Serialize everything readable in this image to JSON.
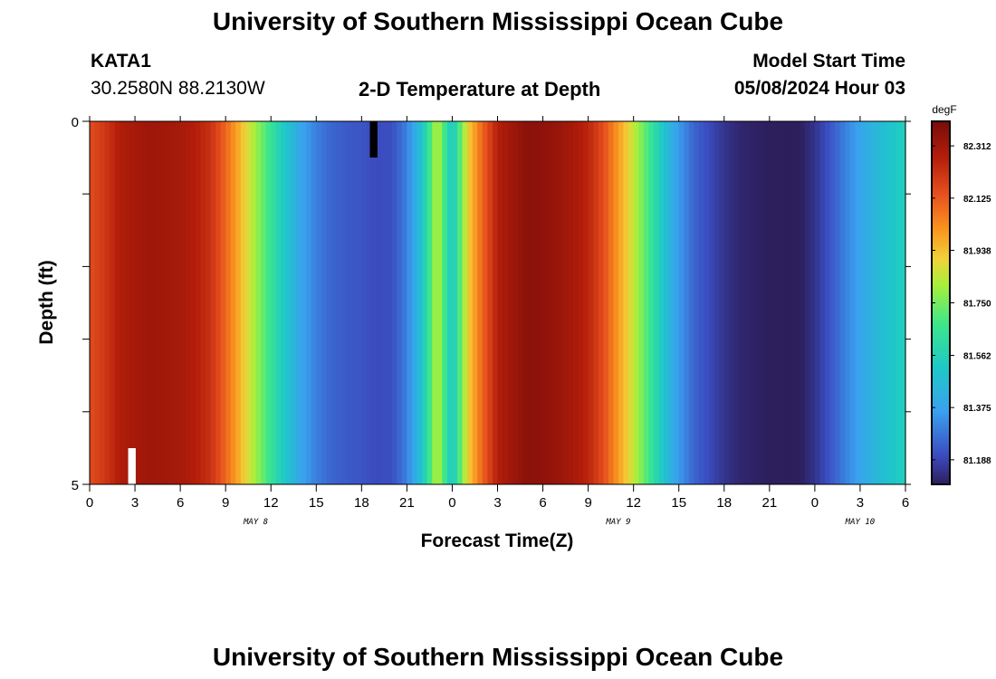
{
  "header": {
    "title": "University of Southern Mississippi Ocean Cube",
    "station": "KATA1",
    "coords": "30.2580N  88.2130W",
    "plot_title": "2-D Temperature at Depth",
    "model_start_label": "Model Start Time",
    "model_start_value": "05/08/2024 Hour 03"
  },
  "footer": {
    "title": "University of Southern Mississippi Ocean Cube"
  },
  "colors": {
    "text": "#000000",
    "background": "#ffffff"
  },
  "chart_data": {
    "type": "heatmap",
    "title": "2-D Temperature at Depth",
    "xlabel": "Forecast Time(Z)",
    "ylabel": "Depth (ft)",
    "x_tick_labels": [
      "0",
      "3",
      "6",
      "9",
      "12",
      "15",
      "18",
      "21",
      "0",
      "3",
      "6",
      "9",
      "12",
      "15",
      "18",
      "21",
      "0",
      "3",
      "6"
    ],
    "x_date_labels": [
      {
        "label": "MAY 8",
        "hour": 11
      },
      {
        "label": "MAY 9",
        "hour": 35
      },
      {
        "label": "MAY 10",
        "hour": 51
      }
    ],
    "x_range_hours": [
      0,
      54
    ],
    "y_tick_labels": [
      "0",
      "5"
    ],
    "ylim": [
      0,
      5
    ],
    "colorbar": {
      "unit": "degF",
      "min": 81.1,
      "max": 82.4,
      "tick_labels": [
        "82.312",
        "82.125",
        "81.938",
        "81.750",
        "81.562",
        "81.375",
        "81.188"
      ],
      "tick_values": [
        82.312,
        82.125,
        81.938,
        81.75,
        81.562,
        81.375,
        81.188
      ]
    },
    "temperature_by_hour": [
      82.15,
      82.2,
      82.28,
      82.3,
      82.32,
      82.31,
      82.3,
      82.27,
      82.22,
      82.1,
      81.95,
      81.8,
      81.65,
      81.5,
      81.38,
      81.3,
      81.25,
      81.23,
      81.22,
      81.2,
      81.21,
      81.3,
      81.5,
      81.85,
      81.5,
      81.9,
      82.1,
      82.27,
      82.32,
      82.36,
      82.35,
      82.33,
      82.3,
      82.25,
      82.15,
      82,
      81.85,
      81.68,
      81.5,
      81.35,
      81.25,
      81.2,
      81.15,
      81.12,
      81.11,
      81.1,
      81.1,
      81.1,
      81.15,
      81.22,
      81.3,
      81.38,
      81.45,
      81.5,
      81.55
    ],
    "missing_cells": [
      {
        "hour": 3,
        "depth": 5,
        "color": "#ffffff"
      },
      {
        "hour": 19,
        "depth": 0,
        "color": "#000000"
      }
    ]
  }
}
